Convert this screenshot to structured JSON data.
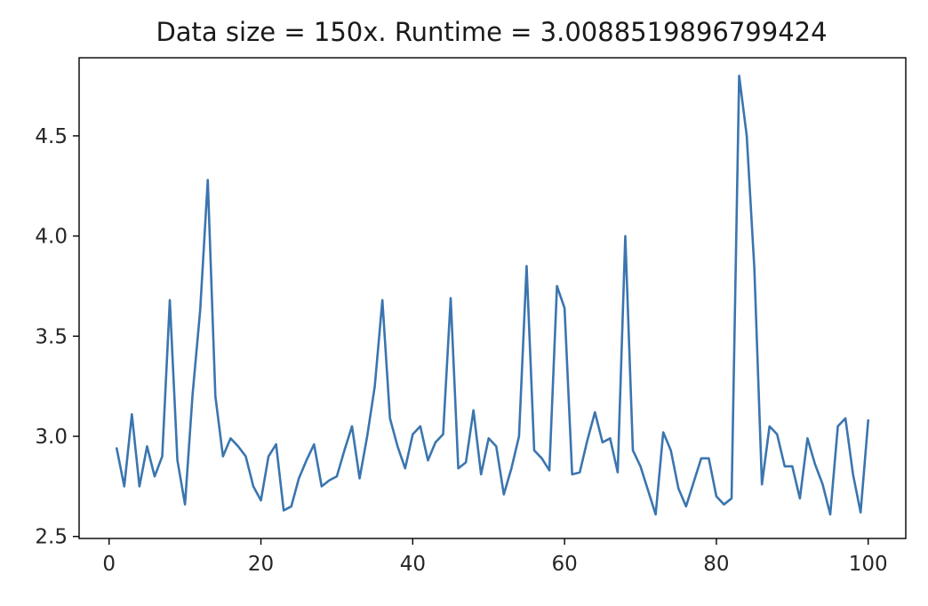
{
  "chart_data": {
    "type": "line",
    "title": "Data size = 150x. Runtime = 3.0088519896799424",
    "xlabel": "",
    "ylabel": "",
    "xlim": [
      -3.95,
      104.95
    ],
    "ylim": [
      2.49,
      4.89
    ],
    "x_ticks": [
      0,
      20,
      40,
      60,
      80,
      100
    ],
    "y_ticks": [
      2.5,
      3.0,
      3.5,
      4.0,
      4.5
    ],
    "x_tick_labels": [
      "0",
      "20",
      "40",
      "60",
      "80",
      "100"
    ],
    "y_tick_labels": [
      "2.5",
      "3.0",
      "3.5",
      "4.0",
      "4.5"
    ],
    "grid": false,
    "legend": "none",
    "series": [
      {
        "color": "#3b75af",
        "x": [
          1,
          2,
          3,
          4,
          5,
          6,
          7,
          8,
          9,
          10,
          11,
          12,
          13,
          14,
          15,
          16,
          17,
          18,
          19,
          20,
          21,
          22,
          23,
          24,
          25,
          26,
          27,
          28,
          29,
          30,
          31,
          32,
          33,
          34,
          35,
          36,
          37,
          38,
          39,
          40,
          41,
          42,
          43,
          44,
          45,
          46,
          47,
          48,
          49,
          50,
          51,
          52,
          53,
          54,
          55,
          56,
          57,
          58,
          59,
          60,
          61,
          62,
          63,
          64,
          65,
          66,
          67,
          68,
          69,
          70,
          71,
          72,
          73,
          74,
          75,
          76,
          77,
          78,
          79,
          80,
          81,
          82,
          83,
          84,
          85,
          86,
          87,
          88,
          89,
          90,
          91,
          92,
          93,
          94,
          95,
          96,
          97,
          98,
          99,
          100
        ],
        "values": [
          2.94,
          2.75,
          3.11,
          2.75,
          2.95,
          2.8,
          2.9,
          3.68,
          2.88,
          2.66,
          3.21,
          3.63,
          4.28,
          3.2,
          2.9,
          2.99,
          2.95,
          2.9,
          2.75,
          2.68,
          2.9,
          2.96,
          2.63,
          2.65,
          2.79,
          2.88,
          2.96,
          2.75,
          2.78,
          2.8,
          2.93,
          3.05,
          2.79,
          3.0,
          3.25,
          3.68,
          3.09,
          2.95,
          2.84,
          3.01,
          3.05,
          2.88,
          2.97,
          3.01,
          3.69,
          2.84,
          2.87,
          3.13,
          2.81,
          2.99,
          2.95,
          2.71,
          2.84,
          3.0,
          3.85,
          2.93,
          2.89,
          2.83,
          3.75,
          3.64,
          2.81,
          2.82,
          2.98,
          3.12,
          2.97,
          2.99,
          2.82,
          4.0,
          2.93,
          2.85,
          2.73,
          2.61,
          3.02,
          2.93,
          2.74,
          2.65,
          2.77,
          2.89,
          2.89,
          2.7,
          2.66,
          2.69,
          4.8,
          4.5,
          3.84,
          2.76,
          3.05,
          3.01,
          2.85,
          2.85,
          2.69,
          2.99,
          2.86,
          2.76,
          2.61,
          3.05,
          3.09,
          2.81,
          2.62,
          3.08
        ]
      }
    ]
  }
}
